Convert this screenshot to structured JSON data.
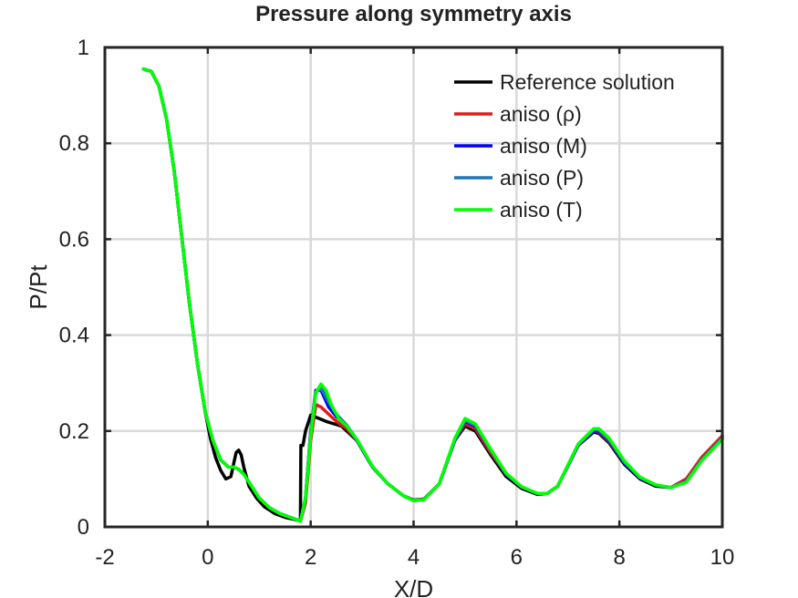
{
  "chart_data": {
    "type": "line",
    "title": "Pressure along symmetry axis",
    "xlabel": "X/D",
    "ylabel": "P/Pt",
    "xlim": [
      -2,
      10
    ],
    "ylim": [
      0,
      1
    ],
    "xticks": [
      -2,
      0,
      2,
      4,
      6,
      8,
      10
    ],
    "yticks": [
      0,
      0.2,
      0.4,
      0.6,
      0.8,
      1
    ],
    "grid": true,
    "legend_position": "top-right",
    "series": [
      {
        "name": "Reference solution",
        "color": "#000000",
        "x": [
          -1.25,
          -1.1,
          -0.95,
          -0.8,
          -0.65,
          -0.5,
          -0.35,
          -0.2,
          -0.05,
          0.05,
          0.15,
          0.25,
          0.35,
          0.45,
          0.5,
          0.55,
          0.6,
          0.65,
          0.7,
          0.8,
          0.95,
          1.1,
          1.3,
          1.5,
          1.7,
          1.8,
          1.81,
          1.85,
          1.9,
          2.0,
          2.3,
          2.6,
          2.9,
          3.2,
          3.5,
          3.8,
          4.0,
          4.2,
          4.5,
          4.8,
          5.0,
          5.2,
          5.5,
          5.8,
          6.1,
          6.4,
          6.6,
          6.8,
          7.2,
          7.5,
          7.6,
          7.8,
          8.1,
          8.4,
          8.7,
          9.0,
          9.3,
          9.6,
          10.0
        ],
        "y": [
          0.955,
          0.95,
          0.92,
          0.85,
          0.74,
          0.6,
          0.46,
          0.34,
          0.24,
          0.185,
          0.145,
          0.118,
          0.1,
          0.105,
          0.13,
          0.155,
          0.16,
          0.15,
          0.125,
          0.085,
          0.06,
          0.042,
          0.028,
          0.02,
          0.015,
          0.013,
          0.17,
          0.17,
          0.2,
          0.233,
          0.22,
          0.21,
          0.18,
          0.125,
          0.09,
          0.065,
          0.056,
          0.058,
          0.09,
          0.18,
          0.21,
          0.2,
          0.15,
          0.105,
          0.08,
          0.068,
          0.07,
          0.085,
          0.17,
          0.198,
          0.195,
          0.175,
          0.13,
          0.1,
          0.085,
          0.082,
          0.1,
          0.14,
          0.19
        ]
      },
      {
        "name": "aniso (ρ)",
        "color": "#e41a1c",
        "x": [
          -1.25,
          -1.1,
          -0.95,
          -0.8,
          -0.65,
          -0.5,
          -0.35,
          -0.2,
          -0.05,
          0.1,
          0.25,
          0.4,
          0.5,
          0.6,
          0.7,
          0.85,
          1.0,
          1.2,
          1.4,
          1.6,
          1.8,
          1.9,
          2.0,
          2.1,
          2.2,
          2.35,
          2.5,
          2.7,
          2.9,
          3.2,
          3.5,
          3.8,
          4.0,
          4.2,
          4.5,
          4.8,
          5.0,
          5.2,
          5.5,
          5.8,
          6.1,
          6.4,
          6.6,
          6.8,
          7.2,
          7.5,
          7.6,
          7.8,
          8.1,
          8.4,
          8.7,
          9.0,
          9.3,
          9.6,
          10.0
        ],
        "y": [
          0.955,
          0.95,
          0.92,
          0.85,
          0.74,
          0.6,
          0.46,
          0.34,
          0.24,
          0.18,
          0.14,
          0.125,
          0.125,
          0.12,
          0.11,
          0.085,
          0.06,
          0.04,
          0.028,
          0.02,
          0.012,
          0.05,
          0.18,
          0.255,
          0.25,
          0.235,
          0.22,
          0.205,
          0.18,
          0.125,
          0.09,
          0.065,
          0.055,
          0.057,
          0.09,
          0.18,
          0.215,
          0.205,
          0.155,
          0.11,
          0.083,
          0.07,
          0.07,
          0.085,
          0.17,
          0.2,
          0.198,
          0.178,
          0.133,
          0.102,
          0.087,
          0.082,
          0.1,
          0.145,
          0.19
        ]
      },
      {
        "name": "aniso (M)",
        "color": "#0000ff",
        "x": [
          -1.25,
          -1.1,
          -0.95,
          -0.8,
          -0.65,
          -0.5,
          -0.35,
          -0.2,
          -0.05,
          0.1,
          0.25,
          0.4,
          0.5,
          0.6,
          0.7,
          0.85,
          1.0,
          1.2,
          1.4,
          1.6,
          1.8,
          1.9,
          2.0,
          2.1,
          2.2,
          2.35,
          2.5,
          2.7,
          2.9,
          3.2,
          3.5,
          3.8,
          4.0,
          4.2,
          4.5,
          4.8,
          5.0,
          5.2,
          5.5,
          5.8,
          6.1,
          6.4,
          6.6,
          6.8,
          7.2,
          7.5,
          7.6,
          7.8,
          8.1,
          8.4,
          8.7,
          9.0,
          9.3,
          9.6,
          10.0
        ],
        "y": [
          0.955,
          0.95,
          0.92,
          0.85,
          0.74,
          0.6,
          0.46,
          0.34,
          0.24,
          0.18,
          0.14,
          0.125,
          0.125,
          0.12,
          0.11,
          0.085,
          0.06,
          0.04,
          0.028,
          0.02,
          0.012,
          0.06,
          0.2,
          0.285,
          0.285,
          0.25,
          0.23,
          0.21,
          0.18,
          0.125,
          0.09,
          0.065,
          0.055,
          0.057,
          0.09,
          0.18,
          0.22,
          0.21,
          0.16,
          0.11,
          0.083,
          0.07,
          0.07,
          0.085,
          0.17,
          0.2,
          0.2,
          0.18,
          0.133,
          0.102,
          0.087,
          0.082,
          0.095,
          0.14,
          0.185
        ]
      },
      {
        "name": "aniso (P)",
        "color": "#1f77b4",
        "x": [
          -1.25,
          -1.1,
          -0.95,
          -0.8,
          -0.65,
          -0.5,
          -0.35,
          -0.2,
          -0.05,
          0.1,
          0.25,
          0.4,
          0.5,
          0.6,
          0.7,
          0.85,
          1.0,
          1.2,
          1.4,
          1.6,
          1.8,
          1.9,
          2.0,
          2.1,
          2.2,
          2.35,
          2.5,
          2.7,
          2.9,
          3.2,
          3.5,
          3.8,
          4.0,
          4.2,
          4.5,
          4.8,
          5.0,
          5.2,
          5.5,
          5.8,
          6.1,
          6.4,
          6.6,
          6.8,
          7.2,
          7.5,
          7.6,
          7.8,
          8.1,
          8.4,
          8.7,
          9.0,
          9.3,
          9.6,
          10.0
        ],
        "y": [
          0.955,
          0.95,
          0.92,
          0.85,
          0.74,
          0.6,
          0.46,
          0.34,
          0.24,
          0.18,
          0.14,
          0.125,
          0.125,
          0.12,
          0.11,
          0.085,
          0.06,
          0.04,
          0.028,
          0.02,
          0.012,
          0.06,
          0.2,
          0.28,
          0.29,
          0.26,
          0.235,
          0.212,
          0.182,
          0.126,
          0.09,
          0.065,
          0.055,
          0.057,
          0.09,
          0.182,
          0.222,
          0.212,
          0.16,
          0.11,
          0.083,
          0.07,
          0.07,
          0.085,
          0.172,
          0.203,
          0.202,
          0.182,
          0.135,
          0.103,
          0.087,
          0.082,
          0.095,
          0.14,
          0.185
        ]
      },
      {
        "name": "aniso (T)",
        "color": "#00ff00",
        "x": [
          -1.25,
          -1.1,
          -0.95,
          -0.8,
          -0.65,
          -0.5,
          -0.35,
          -0.2,
          -0.05,
          0.1,
          0.25,
          0.4,
          0.5,
          0.6,
          0.7,
          0.85,
          1.0,
          1.2,
          1.4,
          1.6,
          1.8,
          1.9,
          2.0,
          2.1,
          2.2,
          2.3,
          2.4,
          2.55,
          2.7,
          2.9,
          3.2,
          3.5,
          3.8,
          4.0,
          4.2,
          4.5,
          4.8,
          5.0,
          5.2,
          5.5,
          5.8,
          6.1,
          6.4,
          6.6,
          6.8,
          7.2,
          7.5,
          7.6,
          7.8,
          8.1,
          8.4,
          8.7,
          9.0,
          9.3,
          9.6,
          10.0
        ],
        "y": [
          0.955,
          0.95,
          0.92,
          0.85,
          0.74,
          0.6,
          0.46,
          0.34,
          0.24,
          0.18,
          0.14,
          0.125,
          0.125,
          0.12,
          0.11,
          0.085,
          0.06,
          0.04,
          0.028,
          0.02,
          0.012,
          0.06,
          0.19,
          0.28,
          0.298,
          0.285,
          0.255,
          0.225,
          0.21,
          0.182,
          0.126,
          0.09,
          0.065,
          0.055,
          0.057,
          0.09,
          0.184,
          0.226,
          0.215,
          0.162,
          0.112,
          0.084,
          0.07,
          0.07,
          0.085,
          0.173,
          0.205,
          0.205,
          0.185,
          0.137,
          0.104,
          0.088,
          0.082,
          0.093,
          0.138,
          0.183
        ]
      }
    ]
  }
}
